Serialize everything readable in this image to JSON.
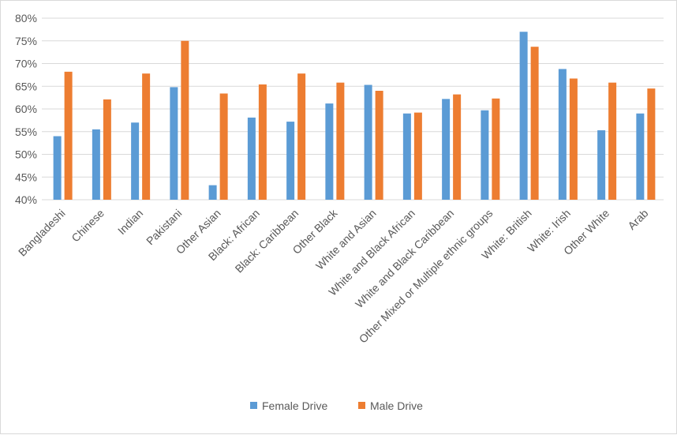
{
  "chart_data": {
    "type": "bar",
    "title": "",
    "xlabel": "",
    "ylabel": "",
    "ylim": [
      0.4,
      0.8
    ],
    "yticks": [
      0.4,
      0.45,
      0.5,
      0.55,
      0.6,
      0.65,
      0.7,
      0.75,
      0.8
    ],
    "ytick_labels": [
      "40%",
      "45%",
      "50%",
      "55%",
      "60%",
      "65%",
      "70%",
      "75%",
      "80%"
    ],
    "grid": true,
    "legend_position": "bottom",
    "categories": [
      "Bangladeshi",
      "Chinese",
      "Indian",
      "Pakistani",
      "Other Asian",
      "Black: African",
      "Black: Caribbean",
      "Other Black",
      "White and Asian",
      "White and Black African",
      "White and Black Caribbean",
      "Other Mixed or Multiple ethnic groups",
      "White:  British",
      "White: Irish",
      "Other White",
      "Arab"
    ],
    "series": [
      {
        "name": "Female Drive",
        "color": "#5b9bd5",
        "values": [
          0.54,
          0.555,
          0.57,
          0.648,
          0.432,
          0.581,
          0.572,
          0.612,
          0.653,
          0.59,
          0.622,
          0.597,
          0.77,
          0.688,
          0.553,
          0.59
        ]
      },
      {
        "name": "Male Drive",
        "color": "#ed7d31",
        "values": [
          0.682,
          0.621,
          0.678,
          0.75,
          0.634,
          0.654,
          0.678,
          0.658,
          0.64,
          0.592,
          0.632,
          0.623,
          0.737,
          0.667,
          0.658,
          0.645
        ]
      }
    ]
  }
}
